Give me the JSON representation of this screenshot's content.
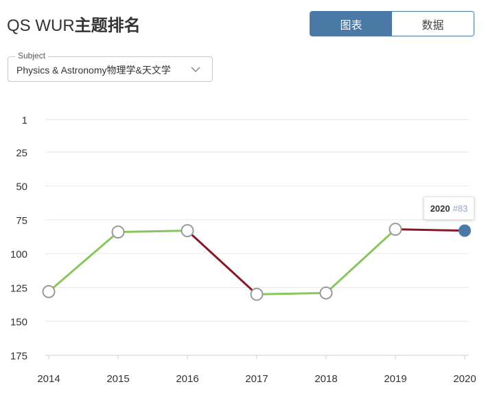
{
  "header": {
    "title_prefix": "QS WUR",
    "title_suffix": "主题排名"
  },
  "view_toggle": {
    "chart_label": "图表",
    "data_label": "数据",
    "active": "chart"
  },
  "subject_select": {
    "legend": "Subject",
    "value": "Physics & Astronomy物理学&天文学"
  },
  "tooltip": {
    "year": "2020",
    "rank": "#83"
  },
  "colors": {
    "improve": "#86c65a",
    "decline": "#8a1527",
    "accent": "#4b79a5",
    "grid": "#e6e6e6"
  },
  "chart_data": {
    "type": "line",
    "title": "",
    "xlabel": "",
    "ylabel": "",
    "x": [
      "2014",
      "2015",
      "2016",
      "2017",
      "2018",
      "2019",
      "2020"
    ],
    "series": [
      {
        "values": [
          128,
          84,
          83,
          130,
          129,
          82,
          83
        ]
      }
    ],
    "y_ticks": [
      1,
      25,
      50,
      75,
      100,
      125,
      150,
      175
    ],
    "ylim": [
      1,
      175
    ],
    "y_reversed": true,
    "grid": true,
    "highlighted_point": "2020"
  }
}
